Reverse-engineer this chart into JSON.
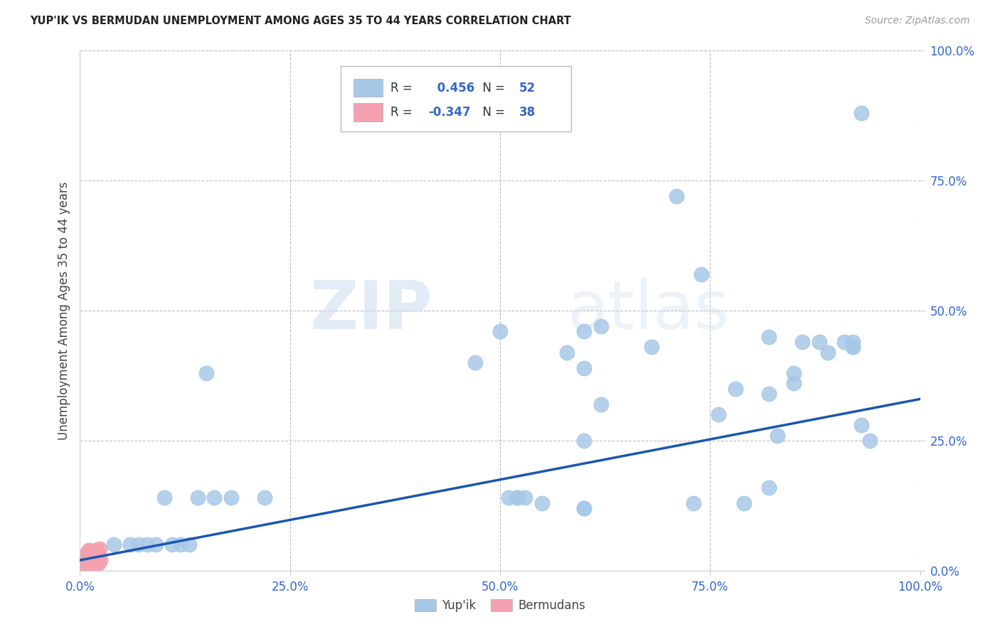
{
  "title": "YUP'IK VS BERMUDAN UNEMPLOYMENT AMONG AGES 35 TO 44 YEARS CORRELATION CHART",
  "source": "Source: ZipAtlas.com",
  "xlim": [
    0,
    1
  ],
  "ylim": [
    0,
    1
  ],
  "ylabel": "Unemployment Among Ages 35 to 44 years",
  "yupik_R": 0.456,
  "yupik_N": 52,
  "bermudan_R": -0.347,
  "bermudan_N": 38,
  "yupik_color": "#a8c8e8",
  "bermudan_color": "#f4a0b0",
  "trend_color": "#1a56b0",
  "grid_color": "#bbbbbb",
  "background_color": "#ffffff",
  "watermark_zip": "ZIP",
  "watermark_atlas": "atlas",
  "label_color": "#3366cc",
  "yupik_x": [
    0.93,
    0.6,
    0.52,
    0.52,
    0.53,
    0.51,
    0.5,
    0.62,
    0.71,
    0.85,
    0.83,
    0.86,
    0.89,
    0.91,
    0.94,
    0.88,
    0.82,
    0.76,
    0.79,
    0.73,
    0.68,
    0.6,
    0.58,
    0.47,
    0.22,
    0.16,
    0.15,
    0.13,
    0.12,
    0.11,
    0.09,
    0.08,
    0.07,
    0.06,
    0.04,
    0.74,
    0.78,
    0.82,
    0.85,
    0.92,
    0.92,
    0.92,
    0.93,
    0.55,
    0.6,
    0.6,
    0.62,
    0.6,
    0.1,
    0.14,
    0.18,
    0.82
  ],
  "yupik_y": [
    0.88,
    0.46,
    0.14,
    0.14,
    0.14,
    0.14,
    0.46,
    0.32,
    0.72,
    0.38,
    0.26,
    0.44,
    0.42,
    0.44,
    0.25,
    0.44,
    0.34,
    0.3,
    0.13,
    0.13,
    0.43,
    0.39,
    0.42,
    0.4,
    0.14,
    0.14,
    0.38,
    0.05,
    0.05,
    0.05,
    0.05,
    0.05,
    0.05,
    0.05,
    0.05,
    0.57,
    0.35,
    0.16,
    0.36,
    0.44,
    0.43,
    0.43,
    0.28,
    0.13,
    0.12,
    0.12,
    0.47,
    0.25,
    0.14,
    0.14,
    0.14,
    0.45
  ],
  "bermudan_x": [
    0.005,
    0.007,
    0.008,
    0.009,
    0.01,
    0.011,
    0.012,
    0.013,
    0.014,
    0.015,
    0.016,
    0.017,
    0.018,
    0.019,
    0.02,
    0.021,
    0.009,
    0.011,
    0.013,
    0.015,
    0.017,
    0.019,
    0.021,
    0.023,
    0.01,
    0.012,
    0.014,
    0.016,
    0.018,
    0.02,
    0.022,
    0.024,
    0.008,
    0.01,
    0.013,
    0.016,
    0.019,
    0.022
  ],
  "bermudan_y": [
    0.01,
    0.012,
    0.015,
    0.018,
    0.02,
    0.022,
    0.025,
    0.028,
    0.03,
    0.033,
    0.035,
    0.038,
    0.015,
    0.02,
    0.025,
    0.03,
    0.035,
    0.04,
    0.012,
    0.018,
    0.024,
    0.03,
    0.036,
    0.042,
    0.01,
    0.016,
    0.022,
    0.028,
    0.034,
    0.04,
    0.014,
    0.02,
    0.026,
    0.032,
    0.038,
    0.01,
    0.015,
    0.022
  ],
  "trend_x_start": 0.0,
  "trend_y_start": 0.02,
  "trend_x_end": 1.0,
  "trend_y_end": 0.33,
  "circle_size": 220
}
